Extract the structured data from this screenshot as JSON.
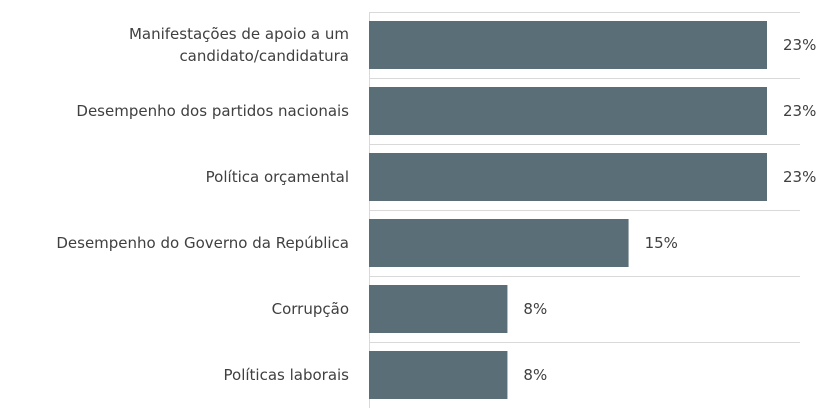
{
  "chart_data": {
    "type": "bar",
    "orientation": "horizontal",
    "categories": [
      "Manifestações de apoio a um\ncandidato/candidatura",
      "Desempenho dos partidos nacionais",
      "Política orçamental",
      "Desempenho do Governo da República",
      "Corrupção",
      "Políticas laborais"
    ],
    "values": [
      23,
      23,
      23,
      15,
      8,
      8
    ],
    "value_labels": [
      "23%",
      "23%",
      "23%",
      "15%",
      "8%",
      "8%"
    ],
    "color": "#596e76",
    "xlim": [
      0,
      23
    ]
  }
}
